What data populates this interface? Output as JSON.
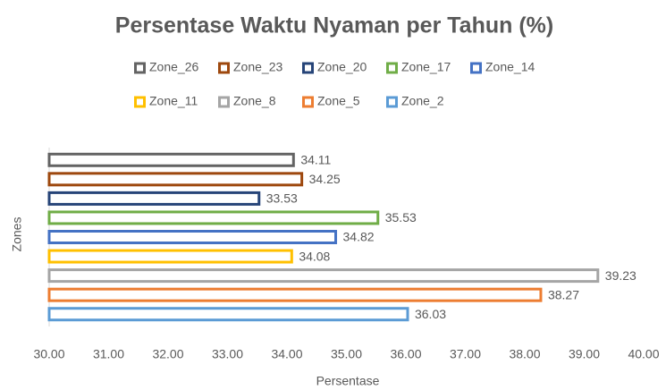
{
  "chart_data": {
    "type": "bar",
    "orientation": "horizontal",
    "title": "Persentase Waktu Nyaman per Tahun (%)",
    "x_label": "Persentase",
    "y_label": "Zones",
    "categories": [
      null
    ],
    "series": [
      {
        "name": "Zone_26",
        "color": "#636363",
        "values": [
          34.11
        ]
      },
      {
        "name": "Zone_23",
        "color": "#9e480e",
        "values": [
          34.25
        ]
      },
      {
        "name": "Zone_20",
        "color": "#264478",
        "values": [
          33.53
        ]
      },
      {
        "name": "Zone_17",
        "color": "#70ad47",
        "values": [
          35.53
        ]
      },
      {
        "name": "Zone_14",
        "color": "#4472c4",
        "values": [
          34.82
        ]
      },
      {
        "name": "Zone_11",
        "color": "#ffc000",
        "values": [
          34.08
        ]
      },
      {
        "name": "Zone_8",
        "color": "#a5a5a5",
        "values": [
          39.23
        ]
      },
      {
        "name": "Zone_5",
        "color": "#ed7d31",
        "values": [
          38.27
        ]
      },
      {
        "name": "Zone_2",
        "color": "#5b9bd5",
        "values": [
          36.03
        ]
      }
    ],
    "xlim": [
      30,
      40
    ],
    "xticks": [
      {
        "value": 30,
        "label": "30.00"
      },
      {
        "value": 31,
        "label": "31.00"
      },
      {
        "value": 32,
        "label": "32.00"
      },
      {
        "value": 33,
        "label": "33.00"
      },
      {
        "value": 34,
        "label": "34.00"
      },
      {
        "value": 35,
        "label": "35.00"
      },
      {
        "value": 36,
        "label": "36.00"
      },
      {
        "value": 37,
        "label": "37.00"
      },
      {
        "value": 38,
        "label": "38.00"
      },
      {
        "value": 39,
        "label": "39.00"
      },
      {
        "value": 40,
        "label": "40.00"
      }
    ],
    "grid": false,
    "legend": "top"
  }
}
